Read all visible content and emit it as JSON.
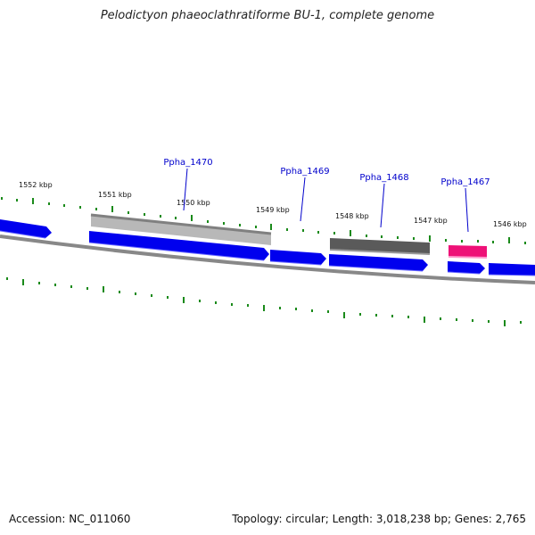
{
  "title": "Pelodictyon phaeoclathratiforme BU-1, complete genome",
  "footer": {
    "accession": "Accession: NC_011060",
    "summary": "Topology: circular; Length: 3,018,238 bp; Genes: 2,765"
  },
  "scale_labels": [
    "1552 kbp",
    "1551 kbp",
    "1550 kbp",
    "1549 kbp",
    "1548 kbp",
    "1547 kbp",
    "1546 kbp"
  ],
  "gene_labels": [
    "Ppha_1470",
    "Ppha_1469",
    "Ppha_1468",
    "Ppha_1467"
  ],
  "colors": {
    "gene": "#0000ee",
    "backbone": "#808080",
    "tick": "#1a8a1a",
    "label": "#0000cc",
    "feature_light": "#b8b8b8",
    "feature_dark": "#555555",
    "feature_pink": "#ee1177"
  }
}
